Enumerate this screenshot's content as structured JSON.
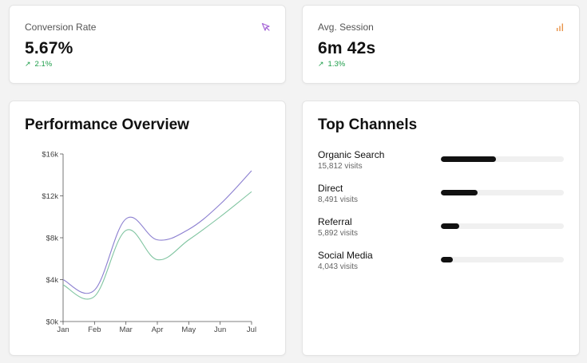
{
  "kpis": {
    "conversion": {
      "title": "Conversion Rate",
      "value": "5.67%",
      "change": "2.1%",
      "icon": "cursor-arrow-icon",
      "icon_color": "#a463d6"
    },
    "session": {
      "title": "Avg. Session",
      "value": "6m 42s",
      "change": "1.3%",
      "icon": "bar-chart-icon",
      "icon_color": "#e8944a"
    },
    "change_color": "#1e9e4a"
  },
  "performance": {
    "title": "Performance Overview"
  },
  "chart_data": {
    "type": "line",
    "x": [
      "Jan",
      "Feb",
      "Mar",
      "Apr",
      "May",
      "Jun",
      "Jul"
    ],
    "y_ticks": [
      "$0k",
      "$4k",
      "$8k",
      "$12k",
      "$16k"
    ],
    "ylim": [
      0,
      16000
    ],
    "series": [
      {
        "color": "#8b7fd0",
        "values": [
          4000,
          3000,
          9800,
          7800,
          8800,
          11200,
          14400
        ]
      },
      {
        "color": "#7fc4a0",
        "values": [
          3500,
          2400,
          8700,
          5900,
          7800,
          10000,
          12400
        ]
      }
    ],
    "grid": false
  },
  "channels": {
    "title": "Top Channels",
    "items": [
      {
        "name": "Organic Search",
        "visits": "15,812 visits",
        "share": 0.45
      },
      {
        "name": "Direct",
        "visits": "8,491 visits",
        "share": 0.3
      },
      {
        "name": "Referral",
        "visits": "5,892 visits",
        "share": 0.15
      },
      {
        "name": "Social Media",
        "visits": "4,043 visits",
        "share": 0.1
      }
    ]
  }
}
